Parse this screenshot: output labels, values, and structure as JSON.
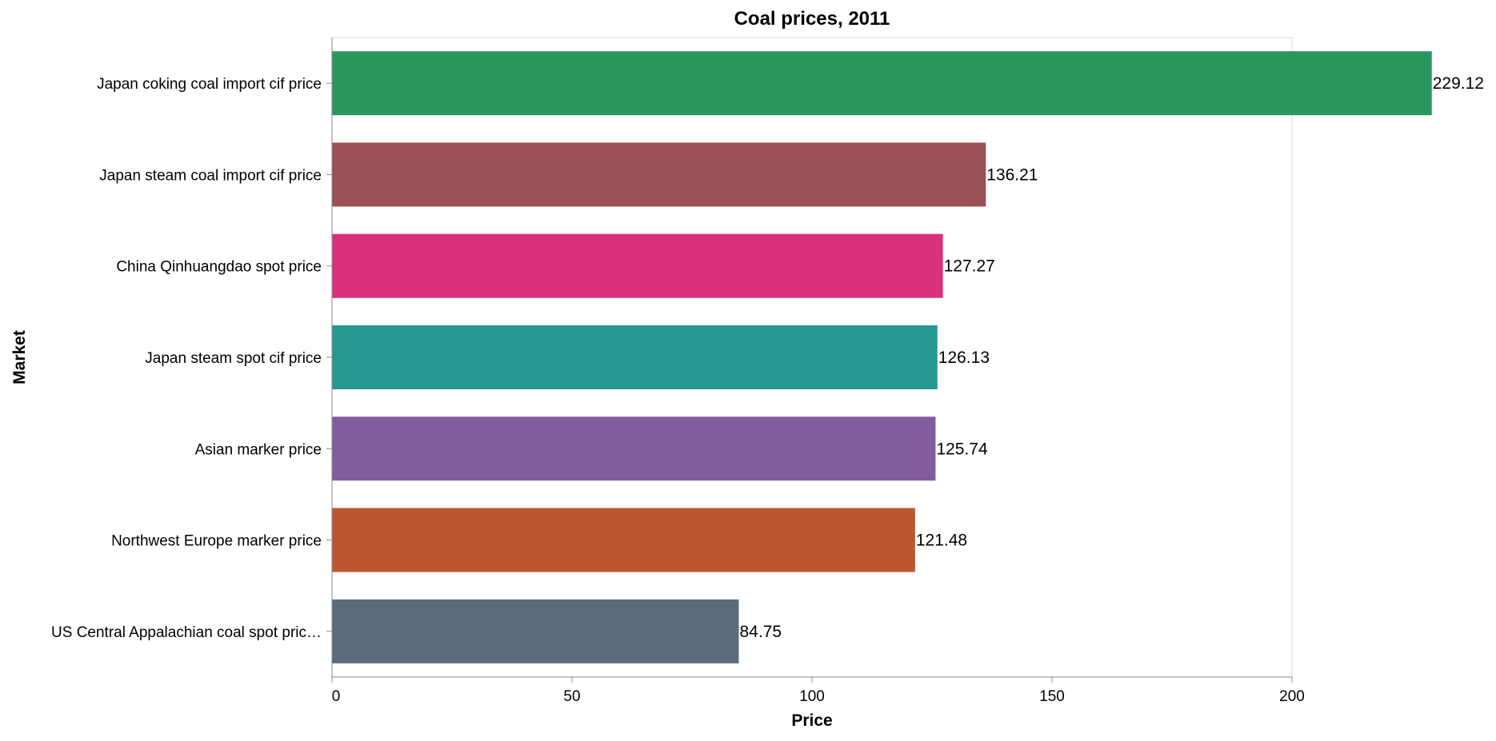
{
  "chart_data": {
    "type": "bar",
    "orientation": "horizontal",
    "title": "Coal prices, 2011",
    "xlabel": "Price",
    "ylabel": "Market",
    "xlim": [
      0,
      200
    ],
    "x_ticks": [
      "0",
      "50",
      "100",
      "150",
      "200"
    ],
    "grid": false,
    "legend": "none",
    "categories": [
      "Japan coking coal import cif price",
      "Japan steam coal import cif price",
      "China Qinhuangdao spot price",
      "Japan steam spot cif price",
      "Asian marker price",
      "Northwest Europe marker price",
      "US Central Appalachian coal spot pric…"
    ],
    "values": [
      229.12,
      136.21,
      127.27,
      126.13,
      125.74,
      121.48,
      84.75
    ],
    "value_labels": [
      "229.12",
      "136.21",
      "127.27",
      "126.13",
      "125.74",
      "121.48",
      "84.75"
    ],
    "colors": [
      "#2a975d",
      "#9b5056",
      "#d8307c",
      "#269791",
      "#835ca0",
      "#bd552f",
      "#5a6b7d"
    ]
  }
}
